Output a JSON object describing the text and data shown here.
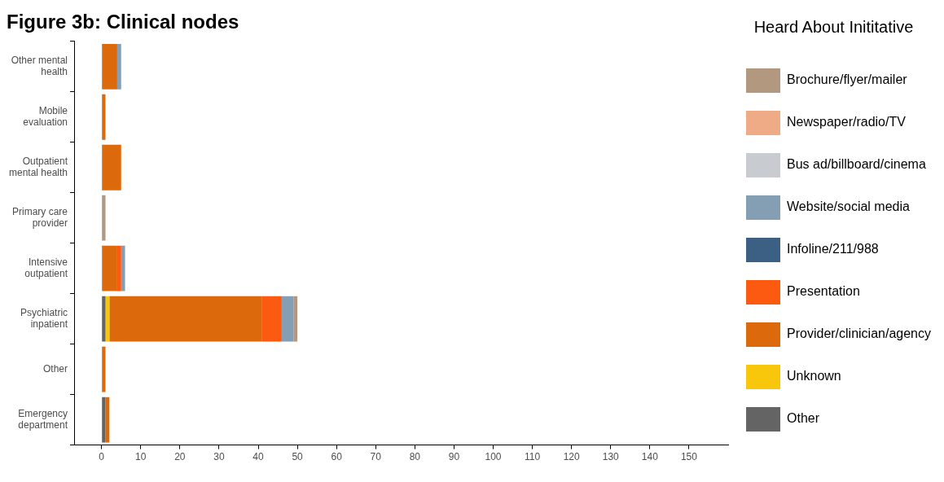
{
  "chart_data": {
    "type": "bar",
    "orientation": "horizontal",
    "stacked": true,
    "title": "Figure 3b: Clinical nodes",
    "legend_title": "Heard About Inititative",
    "legend": "right",
    "grid": false,
    "categories": [
      "Other mental\nhealth",
      "Mobile\nevaluation",
      "Outpatient\nmental health",
      "Primary care\nprovider",
      "Intensive\noutpatient",
      "Psychiatric\ninpatient",
      "Other",
      "Emergency\ndepartment"
    ],
    "xlim": [
      -7,
      160
    ],
    "xticks": [
      0,
      10,
      20,
      30,
      40,
      50,
      60,
      70,
      80,
      90,
      100,
      110,
      120,
      130,
      140,
      150
    ],
    "series": [
      {
        "name": "Other",
        "color": "#646464",
        "values": [
          0,
          0,
          0,
          0,
          0,
          1,
          0,
          1
        ]
      },
      {
        "name": "Unknown",
        "color": "#f8c70c",
        "values": [
          0,
          0,
          0,
          0,
          0,
          1,
          0,
          0
        ]
      },
      {
        "name": "Provider/clinician/agency",
        "color": "#dc6a0c",
        "values": [
          4,
          1,
          5,
          0,
          4,
          39,
          1,
          1
        ]
      },
      {
        "name": "Presentation",
        "color": "#fc5a10",
        "values": [
          0,
          0,
          0,
          0,
          1,
          5,
          0,
          0
        ]
      },
      {
        "name": "Infoline/211/988",
        "color": "#3c5f84",
        "values": [
          0,
          0,
          0,
          0,
          0,
          0,
          0,
          0
        ]
      },
      {
        "name": "Website/social media",
        "color": "#849eb3",
        "values": [
          1,
          0,
          0,
          0,
          1,
          3,
          0,
          0
        ]
      },
      {
        "name": "Bus ad/billboard/cinema",
        "color": "#c8ccd0",
        "values": [
          0,
          0,
          0,
          0,
          0,
          0,
          0,
          0
        ]
      },
      {
        "name": "Newspaper/radio/TV",
        "color": "#eeab86",
        "values": [
          0,
          0,
          0,
          0,
          0,
          0,
          0,
          0
        ]
      },
      {
        "name": "Brochure/flyer/mailer",
        "color": "#b39880",
        "values": [
          0,
          0,
          0,
          1,
          0,
          1,
          0,
          0
        ]
      }
    ]
  }
}
